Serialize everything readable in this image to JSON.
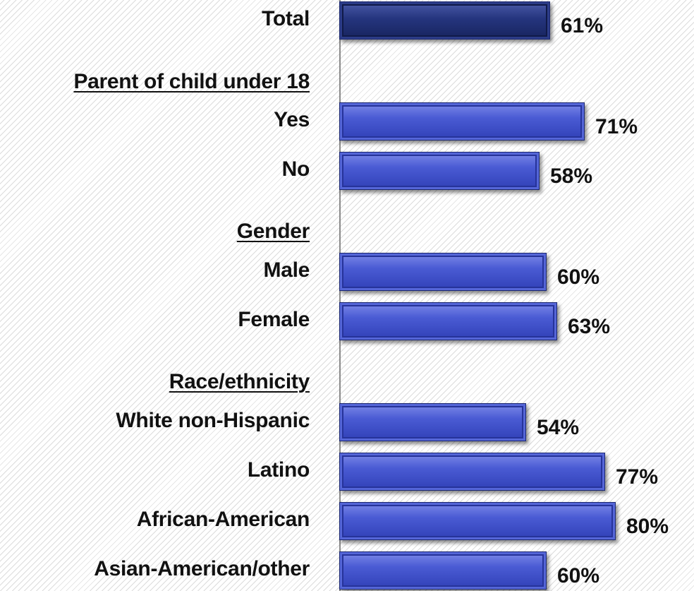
{
  "chart_data": {
    "type": "bar",
    "orientation": "horizontal",
    "rows": [
      {
        "kind": "bar",
        "label": "Total",
        "value": 61,
        "value_label": "61%",
        "style": "dark"
      },
      {
        "kind": "header",
        "label": "Parent of child under 18"
      },
      {
        "kind": "bar",
        "label": "Yes",
        "value": 71,
        "value_label": "71%"
      },
      {
        "kind": "bar",
        "label": "No",
        "value": 58,
        "value_label": "58%"
      },
      {
        "kind": "header",
        "label": "Gender"
      },
      {
        "kind": "bar",
        "label": "Male",
        "value": 60,
        "value_label": "60%"
      },
      {
        "kind": "bar",
        "label": "Female",
        "value": 63,
        "value_label": "63%"
      },
      {
        "kind": "header",
        "label": "Race/ethnicity"
      },
      {
        "kind": "bar",
        "label": "White non-Hispanic",
        "value": 54,
        "value_label": "54%"
      },
      {
        "kind": "bar",
        "label": "Latino",
        "value": 77,
        "value_label": "77%"
      },
      {
        "kind": "bar",
        "label": "African-American",
        "value": 80,
        "value_label": "80%"
      },
      {
        "kind": "bar",
        "label": "Asian-American/other",
        "value": 60,
        "value_label": "60%"
      }
    ],
    "colors": {
      "bar": "#4a5bd4",
      "bar_total": "#25357e",
      "text": "#111111"
    },
    "xlim": [
      0,
      100
    ],
    "grid": false
  }
}
